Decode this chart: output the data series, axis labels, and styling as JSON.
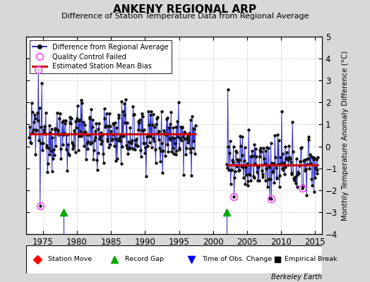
{
  "title": "ANKENY REGIONAL ARP",
  "subtitle": "Difference of Station Temperature Data from Regional Average",
  "ylabel": "Monthly Temperature Anomaly Difference (°C)",
  "xlim": [
    1972.5,
    2016
  ],
  "ylim": [
    -4,
    5
  ],
  "yticks": [
    -4,
    -3,
    -2,
    -1,
    0,
    1,
    2,
    3,
    4,
    5
  ],
  "xticks": [
    1975,
    1980,
    1985,
    1990,
    1995,
    2000,
    2005,
    2010,
    2015
  ],
  "seg1_start": 1973.0,
  "seg1_end": 1997.5,
  "seg2_start": 2002.0,
  "seg2_end": 2015.5,
  "bias1_y": 0.55,
  "bias2_y": -0.85,
  "bias_x1_start": 1973.0,
  "bias_x1_end": 1997.5,
  "bias_x2_start": 2002.0,
  "bias_x2_end": 2015.5,
  "gap_start": 1997.5,
  "gap_end": 2002.0,
  "record_gap1_x": 1978.0,
  "record_gap2_x": 2002.0,
  "record_gap_y": -3.0,
  "qc_spike_up_x": 1974.25,
  "qc_spike_up_y": 3.5,
  "qc_spike_down_x": 1974.5,
  "qc_spike_down_y": -2.7,
  "qc_2003_x": 2003.0,
  "qc_2003_y": -2.3,
  "qc_2008_x": 2008.5,
  "qc_2008_y": -2.4,
  "qc_2013_x": 2013.0,
  "qc_2013_y": -1.9,
  "bg_color": "#d8d8d8",
  "plot_bg_color": "#ffffff",
  "line_color": "#3333cc",
  "dot_color": "#111111",
  "bias_color": "#cc0000",
  "qc_color": "#ff55ff",
  "grid_color": "#aaaaaa",
  "seed": 12345
}
